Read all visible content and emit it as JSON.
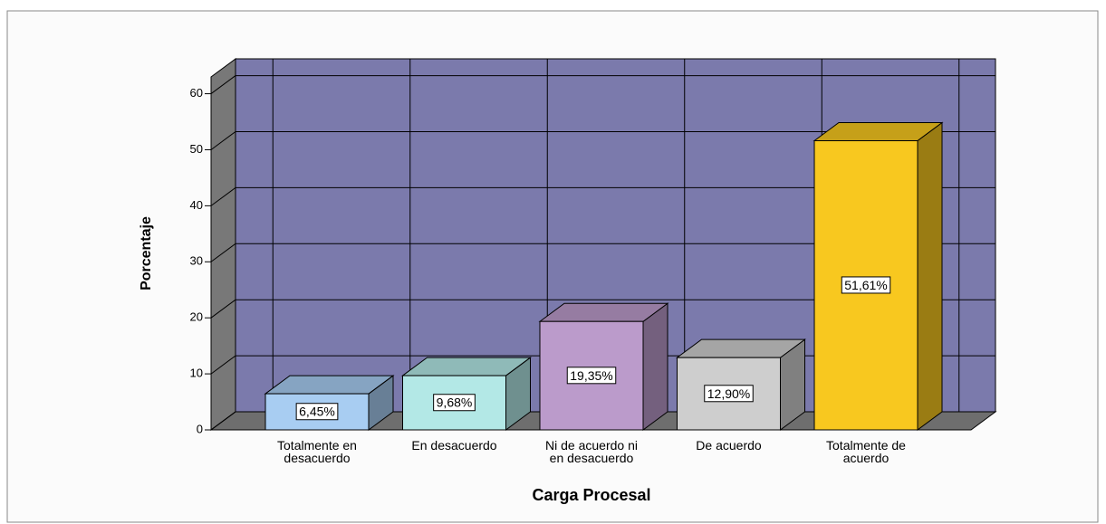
{
  "chart_data": {
    "type": "bar3d",
    "x_label": "Carga Procesal",
    "y_label": "Porcentaje",
    "categories": [
      "Totalmente en desacuerdo",
      "En desacuerdo",
      "Ni de acuerdo ni en desacuerdo",
      "De acuerdo",
      "Totalmente de acuerdo"
    ],
    "values": [
      6.45,
      9.68,
      19.35,
      12.9,
      51.61
    ],
    "value_labels": [
      "6,45%",
      "9,68%",
      "19,35%",
      "12,90%",
      "51,61%"
    ],
    "colors": [
      "#a8cdf2",
      "#b3e8e6",
      "#bb9bcb",
      "#cecece",
      "#f8c81f"
    ],
    "ylim": [
      0,
      63
    ],
    "yticks": [
      0,
      10,
      20,
      30,
      40,
      50,
      60
    ],
    "grid": true
  }
}
